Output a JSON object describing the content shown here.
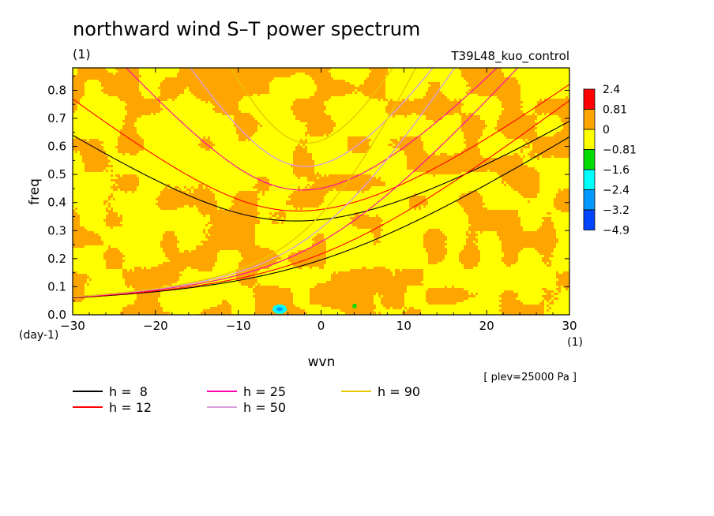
{
  "chart_data": {
    "type": "heatmap",
    "title": "northward wind S–T power spectrum",
    "title_units": "(1)",
    "run_label": "T39L48_kuo_control",
    "xlabel": "wvn",
    "xlabel_units_left": "(day-1)",
    "xlabel_units_right": "(1)",
    "ylabel": "freq",
    "xlim": [
      -30,
      30
    ],
    "ylim": [
      0,
      0.88
    ],
    "x_ticks": [
      -30,
      -20,
      -10,
      0,
      10,
      20,
      30
    ],
    "x_tick_labels": [
      "−30",
      "−20",
      "−10",
      "0",
      "10",
      "20",
      "30"
    ],
    "y_ticks": [
      0,
      0.1,
      0.2,
      0.3,
      0.4,
      0.5,
      0.6,
      0.7,
      0.8
    ],
    "y_tick_labels": [
      "0.0",
      "0.1",
      "0.2",
      "0.3",
      "0.4",
      "0.5",
      "0.6",
      "0.7",
      "0.8"
    ],
    "annotation": "[ plev=25000 Pa ]",
    "colorbar": {
      "labels": [
        "2.4",
        "0.81",
        "0",
        "−0.81",
        "−1.6",
        "−2.4",
        "−3.2",
        "−4.9"
      ],
      "colors": [
        "#ff0000",
        "#ffa500",
        "#ffff00",
        "#00dd00",
        "#00ffff",
        "#0099ff",
        "#0044ff"
      ]
    },
    "field_description_colors": {
      "dominant": "#ffff00",
      "secondary": "#ffa500"
    },
    "dispersion_curves": [
      {
        "name": "h =  8",
        "h": 8,
        "color": "#000000"
      },
      {
        "name": "h = 12",
        "h": 12,
        "color": "#ff0000"
      },
      {
        "name": "h = 25",
        "h": 25,
        "color": "#ff00aa"
      },
      {
        "name": "h = 50",
        "h": 50,
        "color": "#d8a0d8"
      },
      {
        "name": "h = 90",
        "h": 90,
        "color": "#e8c800"
      }
    ],
    "blue_spot": {
      "x": -5,
      "y": 0.02
    }
  }
}
